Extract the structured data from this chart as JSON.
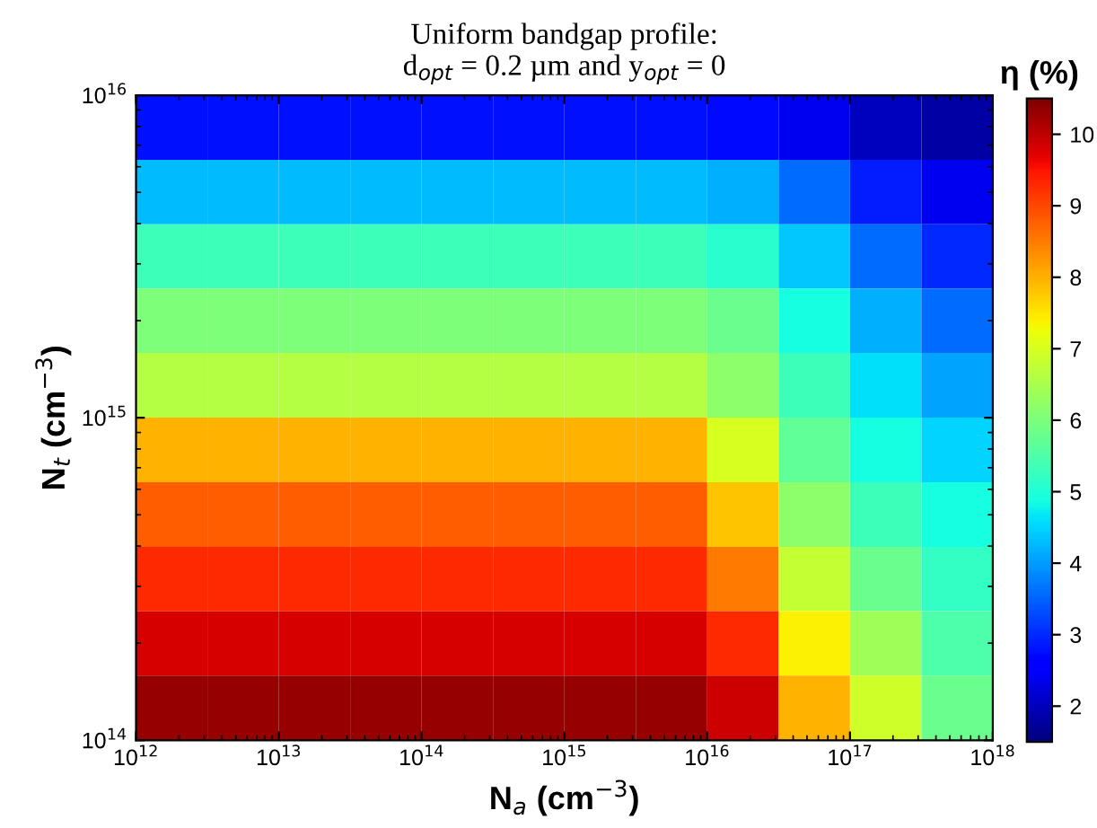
{
  "chart_data": {
    "type": "heatmap",
    "title": "Uniform bandgap profile:\nd$_{opt}$ = 0.2 µm and y$_{opt}$ = 0",
    "xlabel": "N$_{a}$ (cm$^{−3}$)",
    "ylabel": "N$_{t}$ (cm$^{−3}$)",
    "clabel": "η (%)",
    "log": "xy",
    "x": [
      1780000000000.0,
      5620000000000.0,
      17800000000000.0,
      56200000000000.0,
      178000000000000.0,
      562000000000000.0,
      1780000000000000.0,
      5620000000000000.0,
      1.78e+16,
      5.62e+16,
      1.78e+17,
      5.62e+17
    ],
    "y": [
      7940000000000000.0,
      5010000000000000.0,
      3160000000000000.0,
      2000000000000000.0,
      1260000000000000.0,
      794000000000000.0,
      501000000000000.0,
      316000000000000.0,
      200000000000000.0,
      126000000000000.0
    ],
    "cells": [
      [
        2.8,
        2.8,
        2.8,
        2.8,
        2.8,
        2.8,
        2.8,
        2.8,
        2.7,
        2.4,
        2.0,
        1.8
      ],
      [
        4.3,
        4.3,
        4.3,
        4.3,
        4.3,
        4.3,
        4.3,
        4.3,
        4.2,
        3.6,
        2.9,
        2.4
      ],
      [
        5.3,
        5.3,
        5.3,
        5.3,
        5.3,
        5.3,
        5.3,
        5.3,
        5.1,
        4.4,
        3.6,
        3.0
      ],
      [
        6.0,
        6.0,
        6.0,
        6.0,
        6.0,
        6.0,
        6.0,
        6.0,
        5.8,
        4.9,
        4.2,
        3.6
      ],
      [
        6.6,
        6.6,
        6.6,
        6.6,
        6.6,
        6.6,
        6.6,
        6.6,
        6.2,
        5.3,
        4.6,
        4.1
      ],
      [
        8.0,
        8.0,
        8.0,
        8.0,
        8.0,
        8.0,
        8.0,
        8.0,
        7.0,
        5.7,
        4.9,
        4.5
      ],
      [
        8.8,
        8.8,
        8.8,
        8.8,
        8.8,
        8.8,
        8.8,
        8.8,
        7.8,
        6.2,
        5.3,
        4.9
      ],
      [
        9.3,
        9.3,
        9.3,
        9.3,
        9.3,
        9.3,
        9.3,
        9.3,
        8.5,
        6.8,
        5.8,
        5.2
      ],
      [
        9.8,
        9.8,
        9.8,
        9.8,
        9.8,
        9.8,
        9.8,
        9.8,
        9.3,
        7.4,
        6.4,
        5.5
      ],
      [
        10.3,
        10.3,
        10.3,
        10.3,
        10.3,
        10.3,
        10.3,
        10.3,
        9.9,
        8.0,
        6.9,
        5.8
      ]
    ],
    "xlim": [
      1000000000000.0,
      1e+18
    ],
    "xticks": [
      {
        "value": 1000000000000.0,
        "label": "10$^{12}$"
      },
      {
        "value": 10000000000000.0,
        "label": "10$^{13}$"
      },
      {
        "value": 100000000000000.0,
        "label": "10$^{14}$"
      },
      {
        "value": 1000000000000000.0,
        "label": "10$^{15}$"
      },
      {
        "value": 1e+16,
        "label": "10$^{16}$"
      },
      {
        "value": 1e+17,
        "label": "10$^{17}$"
      },
      {
        "value": 1e+18,
        "label": "10$^{18}$"
      }
    ],
    "ylim": [
      100000000000000.0,
      1e+16
    ],
    "yticks": [
      {
        "value": 100000000000000.0,
        "label": "10$^{14}$"
      },
      {
        "value": 1000000000000000.0,
        "label": "10$^{15}$"
      },
      {
        "value": 1e+16,
        "label": "10$^{16}$"
      }
    ],
    "clim": [
      1.5,
      10.5
    ],
    "cticks": [
      2,
      3,
      4,
      5,
      6,
      7,
      8,
      9,
      10
    ]
  }
}
